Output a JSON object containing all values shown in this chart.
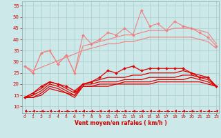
{
  "x": [
    0,
    1,
    2,
    3,
    4,
    5,
    6,
    7,
    8,
    9,
    10,
    11,
    12,
    13,
    14,
    15,
    16,
    17,
    18,
    19,
    20,
    21,
    22,
    23
  ],
  "series": [
    {
      "name": "pink_marked_noisy",
      "color": "#f08080",
      "linewidth": 0.8,
      "marker": "D",
      "markersize": 2.0,
      "values": [
        28,
        25,
        34,
        35,
        29,
        33,
        25,
        42,
        38,
        40,
        43,
        42,
        45,
        42,
        53,
        46,
        47,
        44,
        48,
        46,
        45,
        43,
        41,
        37
      ]
    },
    {
      "name": "pink_smooth_upper",
      "color": "#f08080",
      "linewidth": 0.8,
      "marker": null,
      "markersize": 0,
      "values": [
        28,
        25,
        34,
        35,
        29,
        33,
        25,
        37,
        38,
        39,
        40,
        41,
        42,
        42,
        43,
        44,
        44,
        44,
        45,
        45,
        45,
        44,
        43,
        38
      ]
    },
    {
      "name": "pink_smooth_lower",
      "color": "#f08080",
      "linewidth": 0.8,
      "marker": null,
      "markersize": 0,
      "values": [
        28,
        26,
        null,
        null,
        null,
        null,
        null,
        35,
        36,
        37,
        38,
        38,
        39,
        39,
        40,
        41,
        41,
        41,
        41,
        41,
        41,
        40,
        39,
        36
      ]
    },
    {
      "name": "dark_marked",
      "color": "#dd0000",
      "linewidth": 0.9,
      "marker": "D",
      "markersize": 2.0,
      "values": [
        14,
        16,
        19,
        21,
        20,
        19,
        17,
        20,
        21,
        23,
        26,
        25,
        27,
        28,
        26,
        27,
        27,
        27,
        27,
        27,
        25,
        23,
        23,
        19
      ]
    },
    {
      "name": "dark_line1",
      "color": "#dd0000",
      "linewidth": 0.9,
      "marker": null,
      "markersize": 0,
      "values": [
        14,
        16,
        18,
        21,
        20,
        18,
        16,
        20,
        21,
        22,
        23,
        23,
        23,
        24,
        24,
        25,
        25,
        25,
        25,
        26,
        25,
        24,
        23,
        19
      ]
    },
    {
      "name": "dark_line2",
      "color": "#dd0000",
      "linewidth": 0.9,
      "marker": null,
      "markersize": 0,
      "values": [
        14,
        15,
        17,
        20,
        19,
        17,
        15,
        20,
        20,
        21,
        21,
        21,
        22,
        22,
        22,
        23,
        23,
        23,
        23,
        24,
        24,
        23,
        22,
        19
      ]
    },
    {
      "name": "dark_line3_flat",
      "color": "#dd0000",
      "linewidth": 0.9,
      "marker": null,
      "markersize": 0,
      "values": [
        14,
        14,
        16,
        19,
        18,
        16,
        15,
        19,
        19,
        20,
        20,
        20,
        21,
        21,
        21,
        21,
        22,
        22,
        22,
        22,
        23,
        22,
        21,
        19
      ]
    },
    {
      "name": "dark_bottom_flat",
      "color": "#dd0000",
      "linewidth": 0.9,
      "marker": null,
      "markersize": 0,
      "values": [
        14,
        14,
        15,
        18,
        17,
        16,
        14,
        19,
        19,
        19,
        19,
        20,
        20,
        20,
        20,
        20,
        21,
        21,
        21,
        21,
        21,
        21,
        20,
        19
      ]
    },
    {
      "name": "arrow_dashed",
      "color": "#dd0000",
      "linewidth": 0.7,
      "linestyle": "--",
      "marker": 4,
      "markersize": 3.0,
      "values": [
        8,
        8,
        8,
        8,
        8,
        8,
        8,
        8,
        8,
        8,
        8,
        8,
        8,
        8,
        8,
        8,
        8,
        8,
        8,
        8,
        8,
        8,
        8,
        8
      ]
    }
  ],
  "xlabel": "Vent moyen/en rafales ( km/h )",
  "xlim": [
    -0.3,
    23.3
  ],
  "ylim": [
    7,
    57
  ],
  "yticks": [
    10,
    15,
    20,
    25,
    30,
    35,
    40,
    45,
    50,
    55
  ],
  "xticks": [
    0,
    1,
    2,
    3,
    4,
    5,
    6,
    7,
    8,
    9,
    10,
    11,
    12,
    13,
    14,
    15,
    16,
    17,
    18,
    19,
    20,
    21,
    22,
    23
  ],
  "bg_color": "#cce8e8",
  "grid_color": "#aacece",
  "tick_color": "#cc0000",
  "label_color": "#cc0000"
}
